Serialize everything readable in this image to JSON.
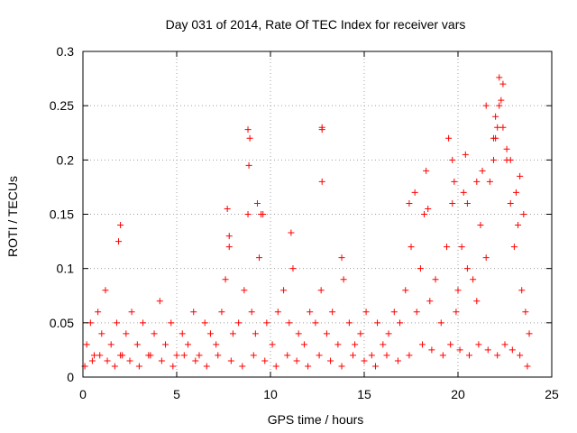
{
  "chart_data": {
    "type": "scatter",
    "title": "Day 031 of 2014, Rate Of TEC Index for receiver vars",
    "xlabel": "GPS time / hours",
    "ylabel": "ROTI / TECUs",
    "xlim": [
      0,
      25
    ],
    "ylim": [
      0,
      0.3
    ],
    "xticks": [
      0,
      5,
      10,
      15,
      20,
      25
    ],
    "yticks": [
      0,
      0.05,
      0.1,
      0.15,
      0.2,
      0.25,
      0.3
    ],
    "xtick_labels": [
      "0",
      "5",
      "10",
      "15",
      "20",
      "25"
    ],
    "ytick_labels": [
      "0",
      "0.05",
      "0.1",
      "0.15",
      "0.2",
      "0.25",
      "0.3"
    ],
    "grid": true,
    "marker": "+",
    "color": "#ff0000",
    "series": [
      {
        "name": "ROTI",
        "x": [
          0.2,
          0.4,
          0.6,
          0.8,
          1.0,
          1.2,
          1.5,
          1.8,
          2.0,
          2.3,
          2.6,
          2.9,
          3.2,
          3.5,
          3.8,
          4.1,
          4.4,
          4.7,
          5.0,
          5.3,
          5.6,
          5.9,
          6.2,
          6.5,
          6.8,
          7.1,
          7.4,
          7.6,
          7.8,
          8.0,
          8.3,
          8.6,
          8.8,
          8.9,
          9.0,
          9.2,
          9.4,
          9.6,
          9.8,
          10.1,
          10.4,
          10.7,
          11.0,
          11.2,
          11.5,
          11.8,
          12.1,
          12.4,
          12.7,
          12.75,
          13.0,
          13.3,
          13.6,
          13.9,
          14.2,
          14.5,
          14.8,
          15.1,
          15.4,
          15.7,
          16.0,
          16.3,
          16.6,
          16.9,
          17.2,
          17.5,
          17.8,
          18.0,
          18.2,
          18.5,
          18.8,
          19.1,
          19.4,
          19.7,
          19.9,
          20.0,
          20.2,
          20.5,
          20.8,
          21.0,
          21.2,
          21.5,
          21.7,
          21.9,
          22.0,
          22.2,
          22.4,
          22.6,
          22.8,
          23.0,
          23.2,
          23.4,
          23.6,
          23.8,
          0.1,
          0.5,
          0.9,
          1.3,
          1.7,
          2.1,
          2.5,
          3.0,
          3.6,
          4.2,
          4.8,
          5.4,
          6.0,
          6.6,
          7.2,
          7.9,
          8.5,
          9.1,
          9.7,
          10.3,
          10.9,
          11.4,
          12.0,
          12.6,
          13.2,
          13.8,
          14.4,
          15.0,
          15.6,
          16.2,
          16.8,
          17.4,
          18.1,
          18.6,
          19.2,
          19.6,
          20.1,
          20.6,
          21.1,
          21.6,
          22.1,
          22.5,
          22.9,
          23.3,
          23.7,
          1.9,
          2.0,
          7.7,
          7.8,
          8.8,
          8.85,
          9.3,
          9.5,
          11.1,
          12.75,
          12.75,
          13.8,
          17.4,
          17.7,
          18.3,
          18.4,
          19.5,
          19.7,
          19.8,
          20.3,
          20.4,
          20.5,
          21.0,
          21.3,
          21.5,
          21.9,
          22.0,
          22.1,
          22.2,
          22.3,
          22.4,
          22.6,
          22.8,
          23.1,
          23.3,
          23.5
        ],
        "y": [
          0.03,
          0.05,
          0.02,
          0.06,
          0.04,
          0.08,
          0.03,
          0.05,
          0.02,
          0.04,
          0.06,
          0.03,
          0.05,
          0.02,
          0.04,
          0.07,
          0.03,
          0.05,
          0.02,
          0.04,
          0.03,
          0.06,
          0.02,
          0.05,
          0.04,
          0.03,
          0.06,
          0.09,
          0.12,
          0.04,
          0.05,
          0.08,
          0.15,
          0.22,
          0.06,
          0.04,
          0.11,
          0.15,
          0.05,
          0.03,
          0.06,
          0.08,
          0.05,
          0.1,
          0.04,
          0.03,
          0.06,
          0.05,
          0.08,
          0.23,
          0.04,
          0.06,
          0.03,
          0.09,
          0.05,
          0.03,
          0.04,
          0.06,
          0.02,
          0.05,
          0.03,
          0.04,
          0.06,
          0.05,
          0.08,
          0.12,
          0.06,
          0.1,
          0.15,
          0.07,
          0.09,
          0.05,
          0.12,
          0.16,
          0.06,
          0.08,
          0.12,
          0.1,
          0.09,
          0.07,
          0.14,
          0.11,
          0.18,
          0.2,
          0.22,
          0.25,
          0.27,
          0.2,
          0.16,
          0.12,
          0.14,
          0.08,
          0.06,
          0.04,
          0.01,
          0.015,
          0.02,
          0.015,
          0.01,
          0.02,
          0.015,
          0.01,
          0.02,
          0.015,
          0.01,
          0.02,
          0.015,
          0.01,
          0.02,
          0.015,
          0.01,
          0.02,
          0.015,
          0.01,
          0.02,
          0.015,
          0.01,
          0.02,
          0.015,
          0.01,
          0.02,
          0.015,
          0.01,
          0.02,
          0.015,
          0.02,
          0.03,
          0.025,
          0.02,
          0.03,
          0.025,
          0.02,
          0.03,
          0.025,
          0.02,
          0.03,
          0.025,
          0.02,
          0.01,
          0.125,
          0.14,
          0.155,
          0.13,
          0.228,
          0.195,
          0.16,
          0.15,
          0.133,
          0.228,
          0.18,
          0.11,
          0.16,
          0.17,
          0.19,
          0.155,
          0.22,
          0.2,
          0.18,
          0.17,
          0.205,
          0.16,
          0.18,
          0.19,
          0.25,
          0.22,
          0.24,
          0.23,
          0.276,
          0.255,
          0.23,
          0.21,
          0.2,
          0.17,
          0.185,
          0.15
        ]
      }
    ]
  }
}
